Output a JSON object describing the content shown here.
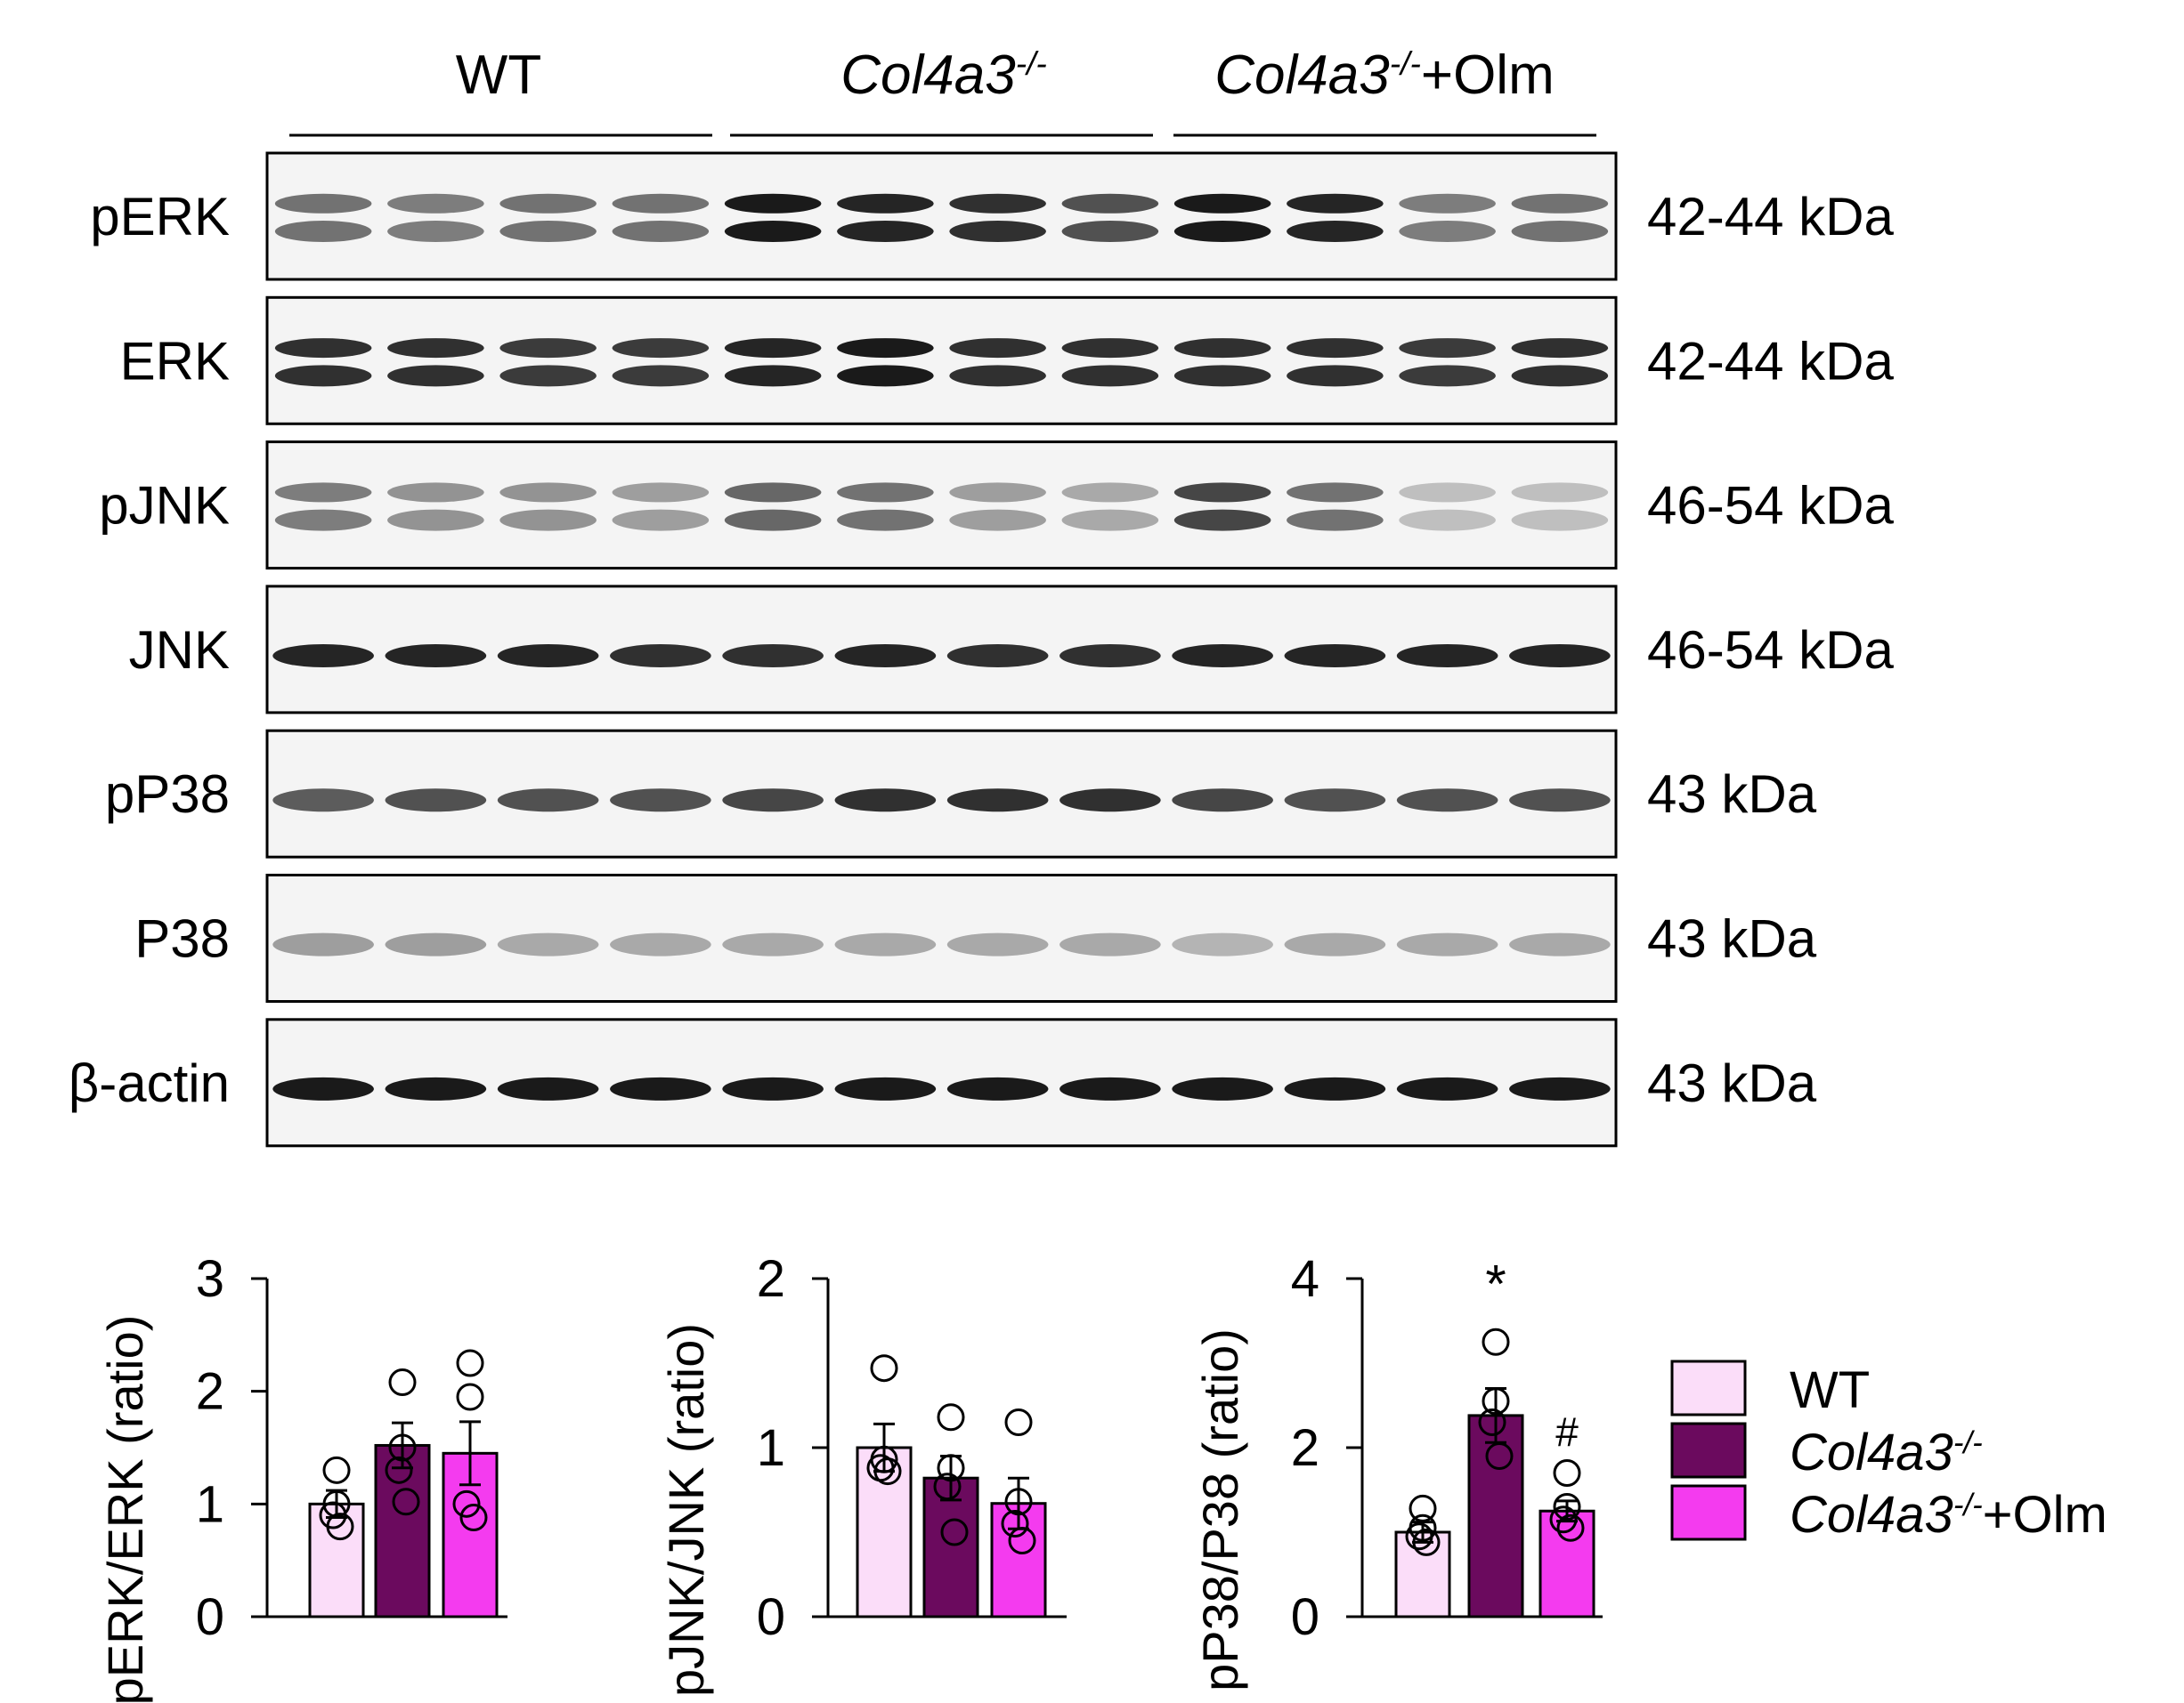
{
  "figure": {
    "groups": [
      {
        "name": "WT",
        "suffix": ""
      },
      {
        "name": "Col4a3",
        "sup": "-/-",
        "suffix": ""
      },
      {
        "name": "Col4a3",
        "sup": "-/-",
        "suffix": "+Olm"
      }
    ],
    "blots": [
      {
        "label": "pERK",
        "kda": "42-44 kDa",
        "lanes": [
          0.55,
          0.5,
          0.55,
          0.55,
          0.95,
          0.9,
          0.85,
          0.7,
          0.95,
          0.9,
          0.5,
          0.55
        ],
        "doublet": true
      },
      {
        "label": "ERK",
        "kda": "42-44 kDa",
        "lanes": [
          0.85,
          0.85,
          0.8,
          0.8,
          0.9,
          0.95,
          0.85,
          0.85,
          0.85,
          0.85,
          0.8,
          0.85
        ],
        "doublet": true
      },
      {
        "label": "pJNK",
        "kda": "46-54 kDa",
        "lanes": [
          0.5,
          0.4,
          0.4,
          0.35,
          0.6,
          0.55,
          0.35,
          0.3,
          0.75,
          0.55,
          0.2,
          0.2
        ],
        "doublet": true
      },
      {
        "label": "JNK",
        "kda": "46-54 kDa",
        "lanes": [
          0.9,
          0.9,
          0.9,
          0.85,
          0.85,
          0.9,
          0.85,
          0.85,
          0.9,
          0.9,
          0.9,
          0.9
        ],
        "doublet": false
      },
      {
        "label": "pP38",
        "kda": "43 kDa",
        "lanes": [
          0.65,
          0.7,
          0.7,
          0.7,
          0.75,
          0.85,
          0.85,
          0.85,
          0.75,
          0.7,
          0.7,
          0.7
        ],
        "doublet": false
      },
      {
        "label": "P38",
        "kda": "43 kDa",
        "lanes": [
          0.35,
          0.35,
          0.3,
          0.3,
          0.3,
          0.3,
          0.3,
          0.3,
          0.25,
          0.3,
          0.3,
          0.3
        ],
        "doublet": false
      },
      {
        "label": "β-actin",
        "kda": "43 kDa",
        "lanes": [
          0.95,
          0.95,
          0.95,
          0.95,
          0.95,
          0.95,
          0.95,
          0.95,
          0.95,
          0.95,
          0.95,
          0.95
        ],
        "doublet": false
      }
    ]
  },
  "legend": {
    "entries": [
      {
        "name": "WT",
        "sup": "",
        "suffix": "",
        "color": "#FBDDF9"
      },
      {
        "name": "Col4a3",
        "sup": "-/-",
        "suffix": "",
        "color": "#6B0A5E"
      },
      {
        "name": "Col4a3",
        "sup": "-/-",
        "suffix": "+Olm",
        "color": "#F43BEF"
      }
    ]
  },
  "chart_data": [
    {
      "type": "bar",
      "ylabel": "pERK/ERK (ratio)",
      "ylim": [
        0,
        3
      ],
      "yticks": [
        0,
        1,
        2,
        3
      ],
      "categories": [
        "WT",
        "Col4a3-/-",
        "Col4a3-/-+Olm"
      ],
      "values": [
        1.0,
        1.52,
        1.45
      ],
      "errors": [
        0.12,
        0.2,
        0.28
      ],
      "points": [
        [
          1.3,
          1.0,
          0.9,
          0.8
        ],
        [
          2.08,
          1.5,
          1.3,
          1.02
        ],
        [
          2.25,
          1.95,
          1.0,
          0.88
        ]
      ],
      "annotations": [
        "",
        "",
        ""
      ],
      "colors": [
        "#FBDDF9",
        "#6B0A5E",
        "#F43BEF"
      ]
    },
    {
      "type": "bar",
      "ylabel": "pJNK/JNK (ratio)",
      "ylim": [
        0,
        2
      ],
      "yticks": [
        0,
        1,
        2
      ],
      "categories": [
        "WT",
        "Col4a3-/-",
        "Col4a3-/-+Olm"
      ],
      "values": [
        1.0,
        0.82,
        0.67
      ],
      "errors": [
        0.14,
        0.13,
        0.15
      ],
      "points": [
        [
          1.47,
          0.93,
          0.88,
          0.86
        ],
        [
          1.18,
          0.88,
          0.77,
          0.5
        ],
        [
          1.15,
          0.68,
          0.55,
          0.45
        ]
      ],
      "annotations": [
        "",
        "",
        ""
      ],
      "colors": [
        "#FBDDF9",
        "#6B0A5E",
        "#F43BEF"
      ]
    },
    {
      "type": "bar",
      "ylabel": "pP38/P38 (ratio)",
      "ylim": [
        0,
        4
      ],
      "yticks": [
        0,
        2,
        4
      ],
      "categories": [
        "WT",
        "Col4a3-/-",
        "Col4a3-/-+Olm"
      ],
      "values": [
        1.0,
        2.38,
        1.25
      ],
      "errors": [
        0.12,
        0.32,
        0.12
      ],
      "points": [
        [
          1.28,
          1.05,
          0.95,
          0.88
        ],
        [
          3.25,
          2.55,
          2.3,
          1.9
        ],
        [
          1.7,
          1.3,
          1.15,
          1.05
        ]
      ],
      "annotations": [
        "",
        "*",
        "#"
      ],
      "colors": [
        "#FBDDF9",
        "#6B0A5E",
        "#F43BEF"
      ]
    }
  ]
}
